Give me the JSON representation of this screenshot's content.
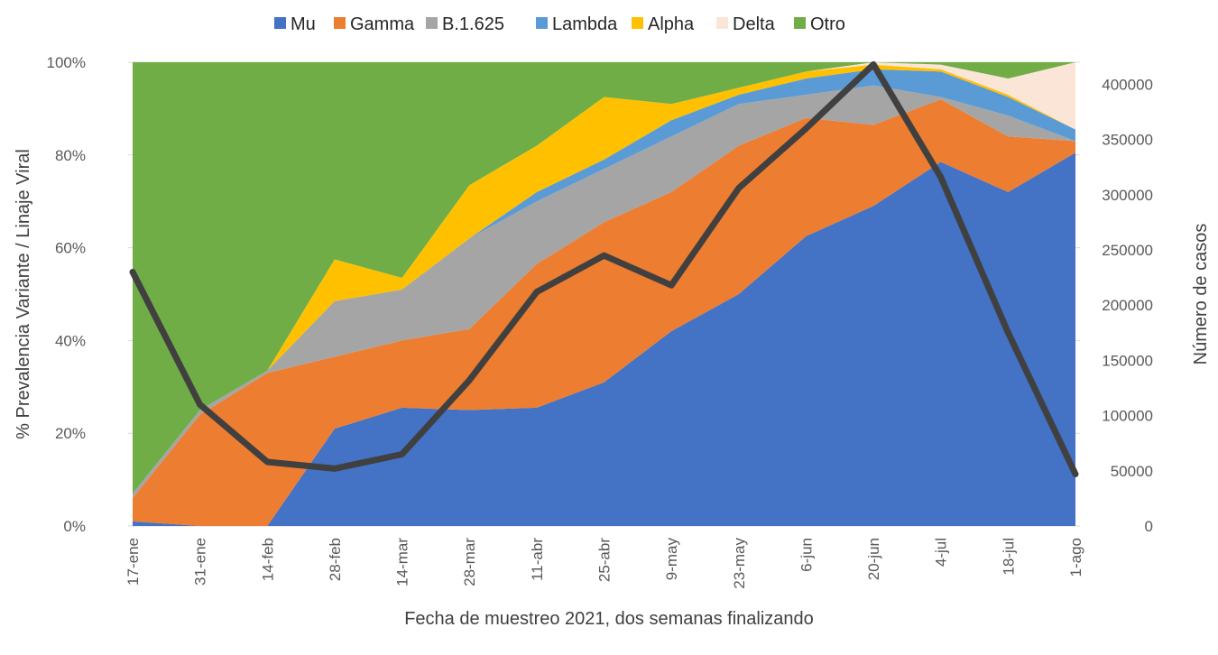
{
  "chart_data": {
    "type": "area",
    "stacked": true,
    "percent_stacked": true,
    "title": "",
    "xlabel": "Fecha de muestreo 2021, dos semanas finalizando",
    "ylabel": "% Prevalencia Variante / Linaje Viral",
    "y2label": "Número de casos",
    "ylim": [
      0,
      100
    ],
    "y2lim": [
      0,
      420000
    ],
    "yticks": [
      "0%",
      "20%",
      "40%",
      "60%",
      "80%",
      "100%"
    ],
    "y2ticks": [
      "0",
      "50000",
      "100000",
      "150000",
      "200000",
      "250000",
      "300000",
      "350000",
      "400000"
    ],
    "grid": true,
    "legend_position": "top",
    "categories": [
      "17-ene",
      "31-ene",
      "14-feb",
      "28-feb",
      "14-mar",
      "28-mar",
      "11-abr",
      "25-abr",
      "9-may",
      "23-may",
      "6-jun",
      "20-jun",
      "4-jul",
      "18-jul",
      "1-ago"
    ],
    "series": [
      {
        "name": "Mu",
        "color": "#4472C4",
        "values": [
          1,
          0,
          0,
          21,
          25.5,
          25,
          25.5,
          31,
          42,
          50,
          62.5,
          69,
          78.5,
          72,
          80.5
        ]
      },
      {
        "name": "Gamma",
        "color": "#ED7D31",
        "values": [
          5,
          24,
          33,
          15.5,
          14.5,
          17.5,
          31,
          34.5,
          30,
          32,
          25.5,
          17.5,
          13.5,
          12,
          2.5
        ]
      },
      {
        "name": "B.1.625",
        "color": "#A5A5A5",
        "values": [
          1,
          1,
          0.5,
          12,
          11,
          19.5,
          13.5,
          11.5,
          12,
          9,
          5,
          8.5,
          0.5,
          4.5,
          0
        ]
      },
      {
        "name": "Lambda",
        "color": "#5B9BD5",
        "values": [
          0,
          0,
          0,
          0,
          0,
          0,
          2,
          2,
          3.5,
          2,
          3.5,
          3.5,
          5.5,
          4,
          2.5
        ]
      },
      {
        "name": "Alpha",
        "color": "#FFC000",
        "values": [
          0,
          0,
          0,
          9,
          2.5,
          11.5,
          10,
          13.5,
          3.5,
          1.5,
          1.5,
          1,
          0.5,
          0.5,
          0
        ]
      },
      {
        "name": "Delta",
        "color": "#FBE5D6",
        "values": [
          0,
          0,
          0,
          0,
          0,
          0,
          0,
          0,
          0,
          0,
          0,
          0.5,
          1,
          3.5,
          14.5
        ]
      },
      {
        "name": "Otro",
        "color": "#70AD47",
        "values": [
          93,
          75,
          66.5,
          42.5,
          46.5,
          26.5,
          18,
          7.5,
          9,
          5.5,
          2,
          0,
          0.5,
          3.5,
          0
        ]
      }
    ],
    "line_series": {
      "name": "Número de casos",
      "color": "#404040",
      "axis": "right",
      "values": [
        230000,
        110000,
        58000,
        52000,
        65000,
        132000,
        212000,
        245000,
        218000,
        306000,
        360000,
        418000,
        316000,
        175000,
        47000
      ]
    }
  }
}
